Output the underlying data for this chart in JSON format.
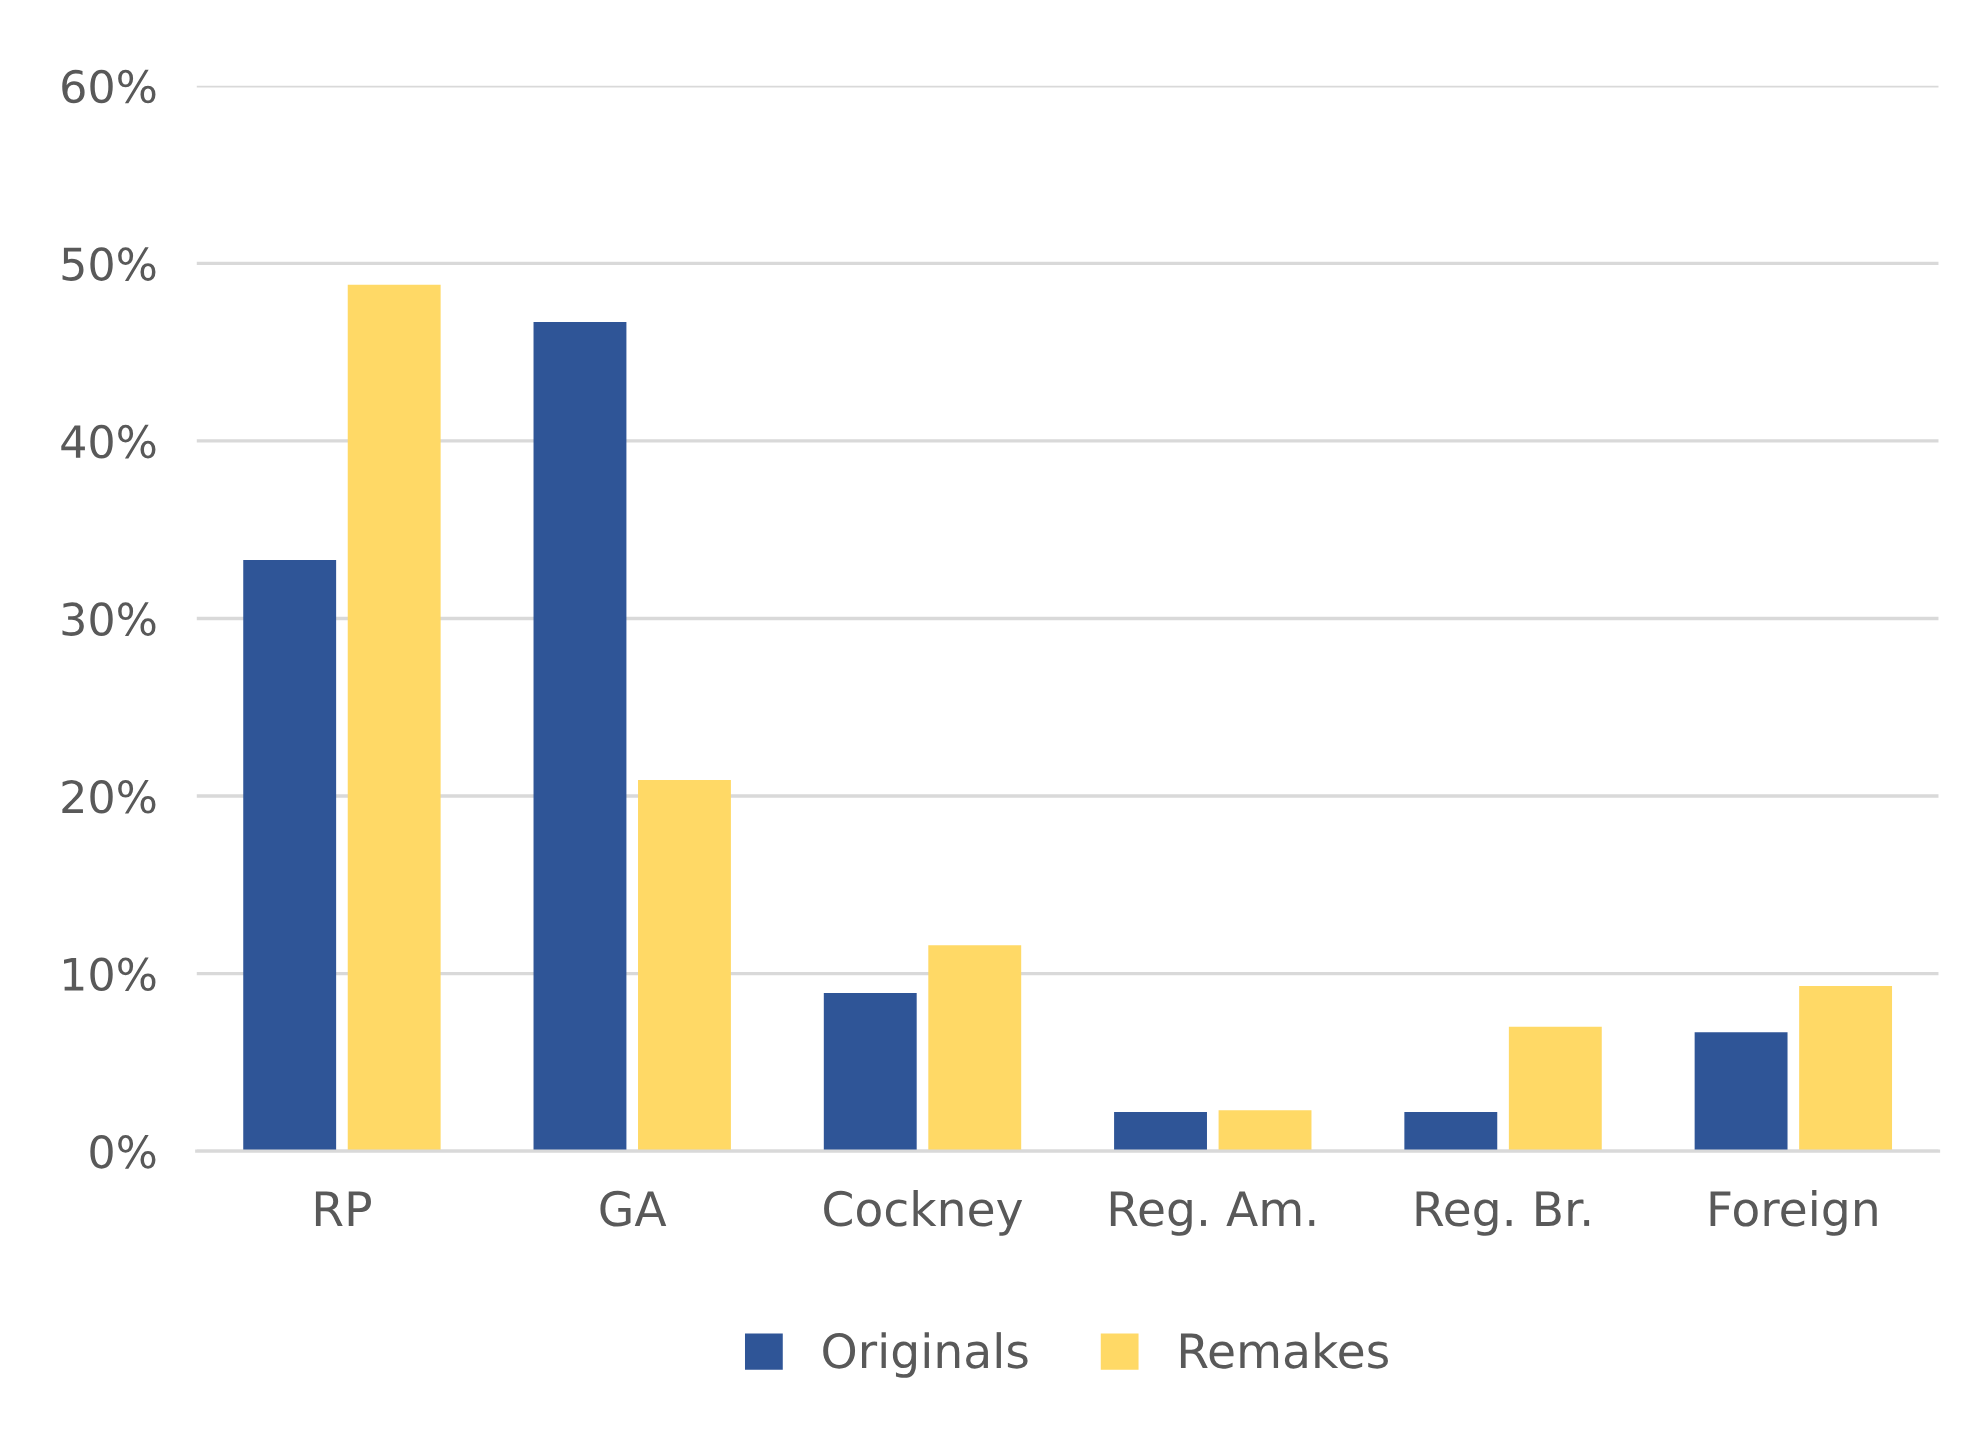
{
  "chart_data": {
    "type": "bar",
    "categories": [
      "RP",
      "GA",
      "Cockney",
      "Reg. Am.",
      "Reg. Br.",
      "Foreign"
    ],
    "series": [
      {
        "name": "Originals",
        "color": "#2f5597",
        "values": [
          33.3,
          46.7,
          8.9,
          2.2,
          2.2,
          6.7
        ]
      },
      {
        "name": "Remakes",
        "color": "#ffd966",
        "values": [
          48.8,
          20.9,
          11.6,
          2.3,
          7.0,
          9.3
        ]
      }
    ],
    "ylim": [
      0,
      60
    ],
    "yticks": [
      {
        "value": 0,
        "label": "0%"
      },
      {
        "value": 10,
        "label": "10%"
      },
      {
        "value": 20,
        "label": "20%"
      },
      {
        "value": 30,
        "label": "30%"
      },
      {
        "value": 40,
        "label": "40%"
      },
      {
        "value": 50,
        "label": "50%"
      },
      {
        "value": 60,
        "label": "60%"
      }
    ],
    "grid": "y",
    "legend": "bottom"
  }
}
